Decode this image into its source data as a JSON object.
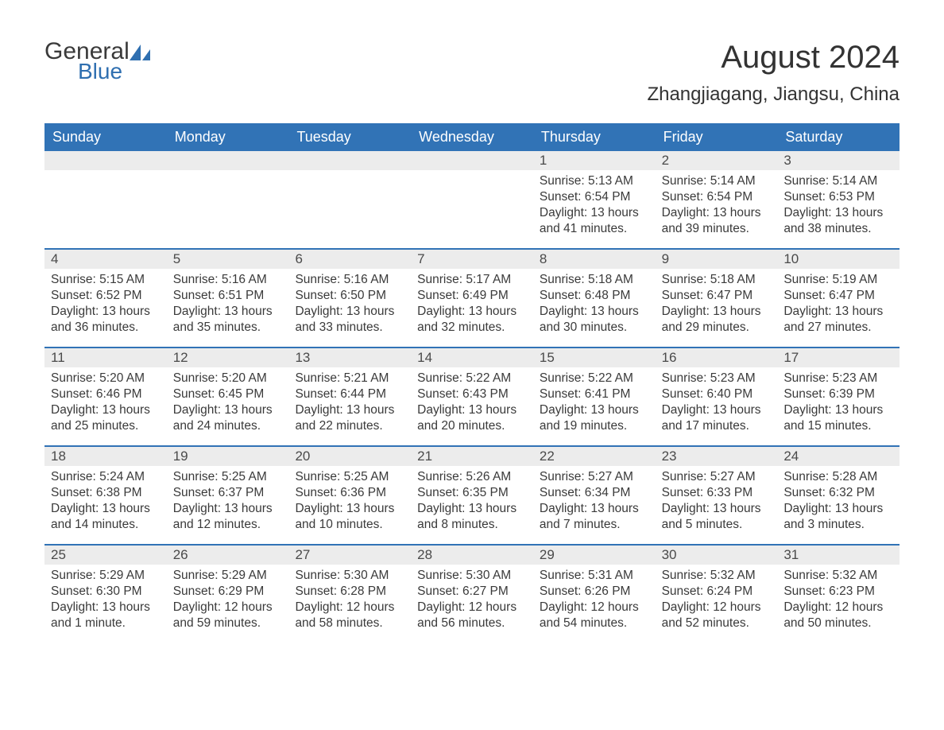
{
  "logo": {
    "text1": "General",
    "text2": "Blue"
  },
  "title": "August 2024",
  "location": "Zhangjiagang, Jiangsu, China",
  "colors": {
    "header_bg": "#3173b6",
    "header_text": "#ffffff",
    "daynum_bg": "#ececec",
    "text": "#333333",
    "logo_blue": "#2f6fb0"
  },
  "days_of_week": [
    "Sunday",
    "Monday",
    "Tuesday",
    "Wednesday",
    "Thursday",
    "Friday",
    "Saturday"
  ],
  "weeks": [
    [
      null,
      null,
      null,
      null,
      {
        "n": "1",
        "sunrise": "5:13 AM",
        "sunset": "6:54 PM",
        "daylight": "13 hours and 41 minutes."
      },
      {
        "n": "2",
        "sunrise": "5:14 AM",
        "sunset": "6:54 PM",
        "daylight": "13 hours and 39 minutes."
      },
      {
        "n": "3",
        "sunrise": "5:14 AM",
        "sunset": "6:53 PM",
        "daylight": "13 hours and 38 minutes."
      }
    ],
    [
      {
        "n": "4",
        "sunrise": "5:15 AM",
        "sunset": "6:52 PM",
        "daylight": "13 hours and 36 minutes."
      },
      {
        "n": "5",
        "sunrise": "5:16 AM",
        "sunset": "6:51 PM",
        "daylight": "13 hours and 35 minutes."
      },
      {
        "n": "6",
        "sunrise": "5:16 AM",
        "sunset": "6:50 PM",
        "daylight": "13 hours and 33 minutes."
      },
      {
        "n": "7",
        "sunrise": "5:17 AM",
        "sunset": "6:49 PM",
        "daylight": "13 hours and 32 minutes."
      },
      {
        "n": "8",
        "sunrise": "5:18 AM",
        "sunset": "6:48 PM",
        "daylight": "13 hours and 30 minutes."
      },
      {
        "n": "9",
        "sunrise": "5:18 AM",
        "sunset": "6:47 PM",
        "daylight": "13 hours and 29 minutes."
      },
      {
        "n": "10",
        "sunrise": "5:19 AM",
        "sunset": "6:47 PM",
        "daylight": "13 hours and 27 minutes."
      }
    ],
    [
      {
        "n": "11",
        "sunrise": "5:20 AM",
        "sunset": "6:46 PM",
        "daylight": "13 hours and 25 minutes."
      },
      {
        "n": "12",
        "sunrise": "5:20 AM",
        "sunset": "6:45 PM",
        "daylight": "13 hours and 24 minutes."
      },
      {
        "n": "13",
        "sunrise": "5:21 AM",
        "sunset": "6:44 PM",
        "daylight": "13 hours and 22 minutes."
      },
      {
        "n": "14",
        "sunrise": "5:22 AM",
        "sunset": "6:43 PM",
        "daylight": "13 hours and 20 minutes."
      },
      {
        "n": "15",
        "sunrise": "5:22 AM",
        "sunset": "6:41 PM",
        "daylight": "13 hours and 19 minutes."
      },
      {
        "n": "16",
        "sunrise": "5:23 AM",
        "sunset": "6:40 PM",
        "daylight": "13 hours and 17 minutes."
      },
      {
        "n": "17",
        "sunrise": "5:23 AM",
        "sunset": "6:39 PM",
        "daylight": "13 hours and 15 minutes."
      }
    ],
    [
      {
        "n": "18",
        "sunrise": "5:24 AM",
        "sunset": "6:38 PM",
        "daylight": "13 hours and 14 minutes."
      },
      {
        "n": "19",
        "sunrise": "5:25 AM",
        "sunset": "6:37 PM",
        "daylight": "13 hours and 12 minutes."
      },
      {
        "n": "20",
        "sunrise": "5:25 AM",
        "sunset": "6:36 PM",
        "daylight": "13 hours and 10 minutes."
      },
      {
        "n": "21",
        "sunrise": "5:26 AM",
        "sunset": "6:35 PM",
        "daylight": "13 hours and 8 minutes."
      },
      {
        "n": "22",
        "sunrise": "5:27 AM",
        "sunset": "6:34 PM",
        "daylight": "13 hours and 7 minutes."
      },
      {
        "n": "23",
        "sunrise": "5:27 AM",
        "sunset": "6:33 PM",
        "daylight": "13 hours and 5 minutes."
      },
      {
        "n": "24",
        "sunrise": "5:28 AM",
        "sunset": "6:32 PM",
        "daylight": "13 hours and 3 minutes."
      }
    ],
    [
      {
        "n": "25",
        "sunrise": "5:29 AM",
        "sunset": "6:30 PM",
        "daylight": "13 hours and 1 minute."
      },
      {
        "n": "26",
        "sunrise": "5:29 AM",
        "sunset": "6:29 PM",
        "daylight": "12 hours and 59 minutes."
      },
      {
        "n": "27",
        "sunrise": "5:30 AM",
        "sunset": "6:28 PM",
        "daylight": "12 hours and 58 minutes."
      },
      {
        "n": "28",
        "sunrise": "5:30 AM",
        "sunset": "6:27 PM",
        "daylight": "12 hours and 56 minutes."
      },
      {
        "n": "29",
        "sunrise": "5:31 AM",
        "sunset": "6:26 PM",
        "daylight": "12 hours and 54 minutes."
      },
      {
        "n": "30",
        "sunrise": "5:32 AM",
        "sunset": "6:24 PM",
        "daylight": "12 hours and 52 minutes."
      },
      {
        "n": "31",
        "sunrise": "5:32 AM",
        "sunset": "6:23 PM",
        "daylight": "12 hours and 50 minutes."
      }
    ]
  ],
  "labels": {
    "sunrise": "Sunrise: ",
    "sunset": "Sunset: ",
    "daylight": "Daylight: "
  }
}
